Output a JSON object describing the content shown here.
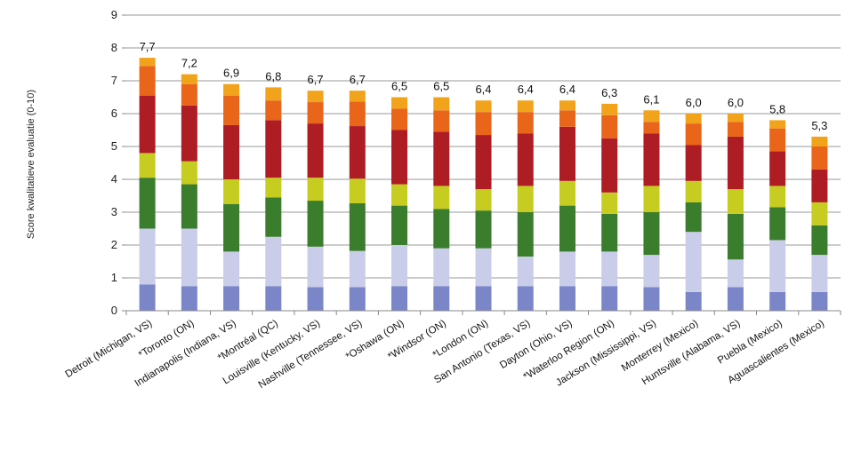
{
  "chart_data": {
    "type": "bar",
    "stacked": true,
    "ylabel": "Score kwalitatieve evaluatie (0-10)",
    "ylim": [
      0,
      9
    ],
    "yticks": [
      0,
      1,
      2,
      3,
      4,
      5,
      6,
      7,
      8,
      9
    ],
    "grid": true,
    "categories": [
      "Detroit (Michigan, VS)",
      "*Toronto (ON)",
      "Indianapolis (Indiana, VS)",
      "*Montréal (QC)",
      "Louisville (Kentucky, VS)",
      "Nashville (Tennessee, VS)",
      "*Oshawa (ON)",
      "*Windsor (ON)",
      "*London (ON)",
      "San Antonio (Texas, VS)",
      "Dayton (Ohio, VS)",
      "*Waterloo Region (ON)",
      "Jackson (Mississippi, VS)",
      "Monterrey (Mexico)",
      "Huntsville (Alabama, VS)",
      "Puebla (Mexico)",
      "Aguascalientes (Mexico)"
    ],
    "total_labels": [
      "7,7",
      "7,2",
      "6,9",
      "6,8",
      "6,7",
      "6,7",
      "6,5",
      "6,5",
      "6,4",
      "6,4",
      "6,4",
      "6,3",
      "6,1",
      "6,0",
      "6,0",
      "5,8",
      "5,3"
    ],
    "series": [
      {
        "color": "#7b86c9",
        "values": [
          0.8,
          0.75,
          0.75,
          0.75,
          0.72,
          0.72,
          0.75,
          0.75,
          0.75,
          0.75,
          0.75,
          0.75,
          0.72,
          0.57,
          0.72,
          0.57,
          0.57
        ]
      },
      {
        "color": "#c9cdea",
        "values": [
          1.7,
          1.75,
          1.05,
          1.5,
          1.23,
          1.1,
          1.25,
          1.15,
          1.15,
          0.9,
          1.05,
          1.05,
          0.98,
          1.83,
          0.84,
          1.58,
          1.13
        ]
      },
      {
        "color": "#3a7d2c",
        "values": [
          1.55,
          1.35,
          1.45,
          1.2,
          1.4,
          1.45,
          1.2,
          1.2,
          1.15,
          1.35,
          1.4,
          1.15,
          1.3,
          0.9,
          1.39,
          1.0,
          0.9
        ]
      },
      {
        "color": "#c6cc20",
        "values": [
          0.75,
          0.7,
          0.75,
          0.6,
          0.7,
          0.75,
          0.65,
          0.7,
          0.65,
          0.8,
          0.75,
          0.65,
          0.8,
          0.65,
          0.75,
          0.65,
          0.7
        ]
      },
      {
        "color": "#ae1c24",
        "values": [
          1.75,
          1.7,
          1.65,
          1.75,
          1.65,
          1.6,
          1.65,
          1.65,
          1.65,
          1.6,
          1.65,
          1.65,
          1.6,
          1.1,
          1.6,
          1.05,
          1.0
        ]
      },
      {
        "color": "#e8651a",
        "values": [
          0.9,
          0.65,
          0.9,
          0.6,
          0.65,
          0.75,
          0.65,
          0.65,
          0.7,
          0.65,
          0.5,
          0.7,
          0.35,
          0.65,
          0.45,
          0.7,
          0.7
        ]
      },
      {
        "color": "#f2a31c",
        "values": [
          0.25,
          0.3,
          0.35,
          0.4,
          0.35,
          0.33,
          0.35,
          0.4,
          0.35,
          0.35,
          0.3,
          0.35,
          0.35,
          0.3,
          0.25,
          0.25,
          0.3
        ]
      }
    ]
  }
}
